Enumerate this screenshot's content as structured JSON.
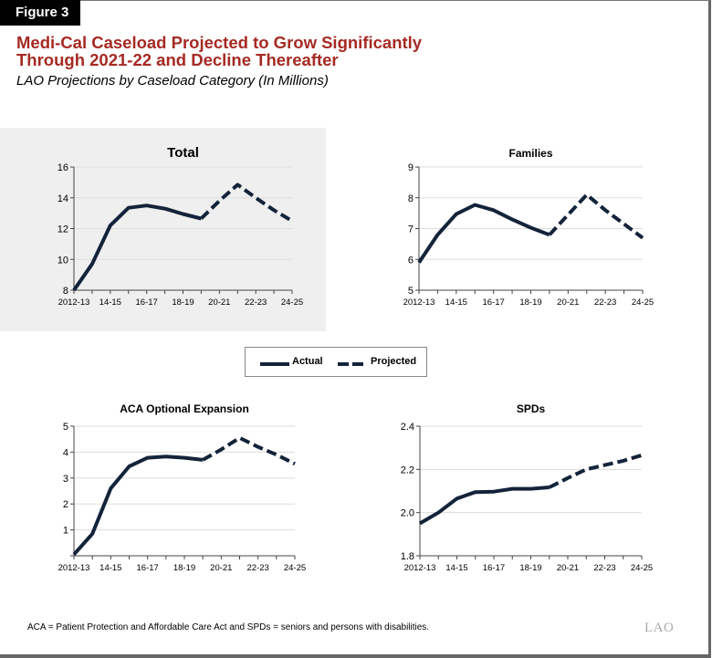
{
  "figure_label": "Figure 3",
  "title_line1": "Medi-Cal Caseload Projected to Grow Significantly",
  "title_line2": "Through 2021-22 and Decline Thereafter",
  "subtitle": "LAO Projections by Caseload Category (In Millions)",
  "legend": {
    "actual": "Actual",
    "projected": "Projected"
  },
  "footnote": "ACA = Patient Protection and Affordable Care Act and SPDs = seniors and persons with disabilities.",
  "logo_text": "LAO",
  "colors": {
    "line": "#13233a",
    "title": "#a52a23",
    "highlight_panel": "#efefef",
    "grid": "#dddddd"
  },
  "chart_data": [
    {
      "type": "line",
      "title": "Total",
      "highlighted": true,
      "x": [
        "2012-13",
        "2013-14",
        "2014-15",
        "2015-16",
        "2016-17",
        "2017-18",
        "2018-19",
        "2019-20",
        "2020-21",
        "2021-22",
        "2022-23",
        "2023-24",
        "2024-25"
      ],
      "x_tick_labels": [
        "2012-13",
        "14-15",
        "16-17",
        "18-19",
        "20-21",
        "22-23",
        "24-25"
      ],
      "ylim": [
        8,
        16
      ],
      "y_ticks": [
        "8",
        "10",
        "12",
        "14",
        "16"
      ],
      "grid": true,
      "series": [
        {
          "name": "Actual",
          "style": "solid",
          "from": "2012-13",
          "to": "2019-20"
        },
        {
          "name": "Projected",
          "style": "dashed",
          "from": "2019-20",
          "to": "2024-25"
        }
      ],
      "values": [
        8.0,
        9.7,
        12.2,
        13.35,
        13.5,
        13.3,
        12.95,
        12.65,
        13.8,
        14.85,
        14.0,
        13.2,
        12.5
      ]
    },
    {
      "type": "line",
      "title": "Families",
      "x": [
        "2012-13",
        "2013-14",
        "2014-15",
        "2015-16",
        "2016-17",
        "2017-18",
        "2018-19",
        "2019-20",
        "2020-21",
        "2021-22",
        "2022-23",
        "2023-24",
        "2024-25"
      ],
      "x_tick_labels": [
        "2012-13",
        "14-15",
        "16-17",
        "18-19",
        "20-21",
        "22-23",
        "24-25"
      ],
      "ylim": [
        5,
        9
      ],
      "y_ticks": [
        "5",
        "6",
        "7",
        "8",
        "9"
      ],
      "grid": true,
      "series": [
        {
          "name": "Actual",
          "style": "solid",
          "from": "2012-13",
          "to": "2019-20"
        },
        {
          "name": "Projected",
          "style": "dashed",
          "from": "2019-20",
          "to": "2024-25"
        }
      ],
      "values": [
        5.9,
        6.8,
        7.47,
        7.77,
        7.6,
        7.3,
        7.03,
        6.8,
        7.45,
        8.1,
        7.6,
        7.15,
        6.7
      ]
    },
    {
      "type": "line",
      "title": "ACA Optional Expansion",
      "x": [
        "2012-13",
        "2013-14",
        "2014-15",
        "2015-16",
        "2016-17",
        "2017-18",
        "2018-19",
        "2019-20",
        "2020-21",
        "2021-22",
        "2022-23",
        "2023-24",
        "2024-25"
      ],
      "x_tick_labels": [
        "2012-13",
        "14-15",
        "16-17",
        "18-19",
        "20-21",
        "22-23",
        "24-25"
      ],
      "ylim": [
        0,
        5
      ],
      "y_ticks": [
        "",
        "1",
        "2",
        "3",
        "4",
        "5"
      ],
      "grid": true,
      "series": [
        {
          "name": "Actual",
          "style": "solid",
          "from": "2012-13",
          "to": "2019-20"
        },
        {
          "name": "Projected",
          "style": "dashed",
          "from": "2019-20",
          "to": "2024-25"
        }
      ],
      "values": [
        0.05,
        0.85,
        2.6,
        3.45,
        3.78,
        3.83,
        3.78,
        3.7,
        4.1,
        4.55,
        4.2,
        3.9,
        3.55
      ]
    },
    {
      "type": "line",
      "title": "SPDs",
      "x": [
        "2012-13",
        "2013-14",
        "2014-15",
        "2015-16",
        "2016-17",
        "2017-18",
        "2018-19",
        "2019-20",
        "2020-21",
        "2021-22",
        "2022-23",
        "2023-24",
        "2024-25"
      ],
      "x_tick_labels": [
        "2012-13",
        "14-15",
        "16-17",
        "18-19",
        "20-21",
        "22-23",
        "24-25"
      ],
      "ylim": [
        1.8,
        2.4
      ],
      "y_ticks": [
        "1.8",
        "2.0",
        "2.2",
        "2.4"
      ],
      "grid": true,
      "series": [
        {
          "name": "Actual",
          "style": "solid",
          "from": "2012-13",
          "to": "2019-20"
        },
        {
          "name": "Projected",
          "style": "dashed",
          "from": "2019-20",
          "to": "2024-25"
        }
      ],
      "values": [
        1.95,
        2.0,
        2.065,
        2.095,
        2.097,
        2.11,
        2.11,
        2.117,
        2.16,
        2.2,
        2.22,
        2.24,
        2.265
      ]
    }
  ]
}
